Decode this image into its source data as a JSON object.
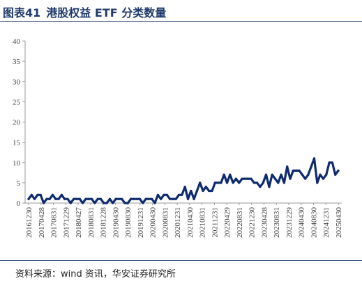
{
  "header": {
    "figure_no": "图表41",
    "title": "港股权益 ETF 分类数量"
  },
  "footer": {
    "source": "资料来源：wind 资讯，华安证券研究所"
  },
  "colors": {
    "line": "#0f2b6e",
    "axis": "#999999",
    "title": "#1f3a6b"
  },
  "chart_data": {
    "type": "line",
    "title": "港股权益 ETF 分类数量",
    "xlabel": "",
    "ylabel": "",
    "ylim": [
      0,
      40
    ],
    "yticks": [
      0,
      5,
      10,
      15,
      20,
      25,
      30,
      35,
      40
    ],
    "grid": false,
    "x_tick_labels": [
      "20161230",
      "20170428",
      "20170831",
      "20171229",
      "20180427",
      "20180831",
      "20181228",
      "20190430",
      "20190830",
      "20191231",
      "20200430",
      "20200831",
      "20201231",
      "20210430",
      "20210831",
      "20211231",
      "20220429",
      "20220831",
      "20221230",
      "20230428",
      "20230831",
      "20231229",
      "20240430",
      "20240830",
      "20241231",
      "20250430"
    ],
    "series": [
      {
        "values": [
          1,
          2,
          1,
          2,
          2,
          0,
          1,
          1,
          2,
          1,
          1,
          2,
          1,
          1,
          0,
          1,
          1,
          1,
          0,
          1,
          1,
          1,
          0,
          1,
          1,
          0,
          0,
          1,
          0,
          1,
          1,
          1,
          0,
          0,
          1,
          1,
          1,
          1,
          0,
          1,
          1,
          1,
          0,
          2,
          1,
          2,
          2,
          1,
          1,
          1,
          2,
          2,
          4,
          1,
          3,
          1,
          3,
          5,
          3,
          4,
          3,
          3,
          5,
          5,
          5,
          7,
          5,
          7,
          5,
          6,
          5,
          6,
          6,
          6,
          6,
          5,
          5,
          4,
          5,
          7,
          4,
          7,
          6,
          5,
          7,
          5,
          9,
          6,
          8,
          8,
          8,
          7,
          6,
          7,
          9,
          11,
          5,
          7,
          6,
          7,
          10,
          10,
          7,
          8
        ]
      }
    ]
  }
}
